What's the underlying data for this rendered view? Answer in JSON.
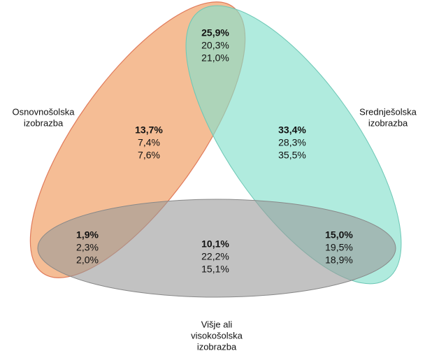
{
  "sets": [
    {
      "lines": [
        "Osnovnošolska",
        "izobrazba"
      ]
    },
    {
      "lines": [
        "Srednješolska",
        "izobrazba"
      ]
    },
    {
      "lines": [
        "Višje ali",
        "visokošolska",
        "izobrazba"
      ]
    }
  ],
  "regions": [
    {
      "values": [
        "25,9%",
        "20,3%",
        "21,0%"
      ]
    },
    {
      "values": [
        "13,7%",
        "7,4%",
        "7,6%"
      ]
    },
    {
      "values": [
        "33,4%",
        "28,3%",
        "35,5%"
      ]
    },
    {
      "values": [
        "1,9%",
        "2,3%",
        "2,0%"
      ]
    },
    {
      "values": [
        "10,1%",
        "22,2%",
        "15,1%"
      ]
    },
    {
      "values": [
        "15,0%",
        "19,5%",
        "18,9%"
      ]
    }
  ]
}
